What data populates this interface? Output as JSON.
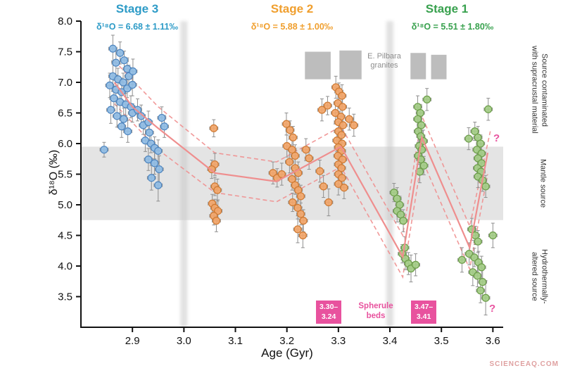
{
  "watermark": "SCIENCEAQ.COM",
  "chart_data": {
    "type": "scatter",
    "xlabel": "Age (Gyr)",
    "ylabel": "δ¹⁸O (‰)",
    "xlim": [
      2.8,
      3.62
    ],
    "ylim": [
      3.0,
      8.0
    ],
    "x_ticks": [
      2.9,
      3.0,
      3.1,
      3.2,
      3.3,
      3.4,
      3.5,
      3.6
    ],
    "y_ticks": [
      3.5,
      4.0,
      4.5,
      5.0,
      5.5,
      6.0,
      6.5,
      7.0,
      7.5,
      8.0
    ],
    "grid": false,
    "xerr": 0.008,
    "colors": {
      "pink": "#e8529e",
      "mantle_band": "#e4e4e4",
      "boundary_band": "#c9c9c9",
      "granite": "#bdbdbd",
      "error_bar": "#8f8f8f",
      "trend": "#ef8e8e"
    },
    "stages": [
      {
        "label": "Stage 3",
        "annotation": "δ¹⁸O = 6.68 ± 1.11‰",
        "color": "#2d9bc7"
      },
      {
        "label": "Stage 2",
        "annotation": "δ¹⁸O = 5.88 ± 1.00‰",
        "color": "#f09f2e"
      },
      {
        "label": "Stage 1",
        "annotation": "δ¹⁸O = 5.51 ± 1.80‰",
        "color": "#38a14e"
      }
    ],
    "stage_boundaries": [
      3.0,
      3.4
    ],
    "mantle_band": {
      "y0": 4.75,
      "y1": 5.95
    },
    "granite_rects": [
      {
        "x0": 3.235,
        "x1": 3.285,
        "y0": 7.05,
        "y1": 7.5
      },
      {
        "x0": 3.302,
        "x1": 3.345,
        "y0": 7.05,
        "y1": 7.52
      },
      {
        "x0": 3.44,
        "x1": 3.47,
        "y0": 7.05,
        "y1": 7.48
      },
      {
        "x0": 3.48,
        "x1": 3.51,
        "y0": 7.05,
        "y1": 7.45
      }
    ],
    "labels": {
      "granites_line1": "E. Pilbara",
      "granites_line2": "granites",
      "right_top_line1": "Source contaminated",
      "right_top_line2": "with supracrustal material",
      "right_middle": "Mantle source",
      "right_bottom_line1": "Hydrothermally-",
      "right_bottom_line2": "altered source",
      "spherule_line1": "Spherule",
      "spherule_line2": "beds",
      "box1_line1": "3.30–",
      "box1_line2": "3.24",
      "box2_line1": "3.47–",
      "box2_line2": "3.41",
      "question_mark": "?"
    },
    "trend": {
      "solid": [
        [
          2.865,
          7.0
        ],
        [
          2.9,
          6.6
        ],
        [
          2.95,
          6.25
        ],
        [
          3.06,
          5.52
        ],
        [
          3.18,
          5.38
        ],
        [
          3.305,
          5.95
        ],
        [
          3.425,
          4.15
        ],
        [
          3.462,
          6.1
        ],
        [
          3.555,
          4.3
        ],
        [
          3.59,
          5.85
        ]
      ],
      "upper": [
        [
          2.865,
          7.35
        ],
        [
          2.95,
          6.6
        ],
        [
          3.06,
          5.85
        ],
        [
          3.18,
          5.7
        ],
        [
          3.305,
          6.28
        ],
        [
          3.425,
          4.5
        ],
        [
          3.462,
          6.45
        ],
        [
          3.555,
          4.65
        ],
        [
          3.595,
          6.2
        ]
      ],
      "lower": [
        [
          2.865,
          6.65
        ],
        [
          2.95,
          5.9
        ],
        [
          3.06,
          5.2
        ],
        [
          3.18,
          5.05
        ],
        [
          3.305,
          5.62
        ],
        [
          3.425,
          3.82
        ],
        [
          3.462,
          5.75
        ],
        [
          3.555,
          3.95
        ],
        [
          3.59,
          5.5
        ]
      ]
    },
    "series": [
      {
        "name": "Stage 3",
        "color": "#8fbce4",
        "edge": "#4f86c0",
        "points": [
          [
            2.862,
            7.55,
            0.22
          ],
          [
            2.876,
            7.48,
            0.18
          ],
          [
            2.868,
            7.32,
            0.2
          ],
          [
            2.884,
            7.36,
            0.15
          ],
          [
            2.89,
            7.22,
            0.18
          ],
          [
            2.862,
            7.1,
            0.25
          ],
          [
            2.872,
            7.05,
            0.18
          ],
          [
            2.882,
            7.0,
            0.15
          ],
          [
            2.893,
            7.1,
            0.18
          ],
          [
            2.901,
            7.18,
            0.2
          ],
          [
            2.856,
            6.95,
            0.2
          ],
          [
            2.868,
            6.88,
            0.18
          ],
          [
            2.879,
            6.84,
            0.18
          ],
          [
            2.89,
            6.9,
            0.15
          ],
          [
            2.9,
            6.96,
            0.18
          ],
          [
            2.864,
            6.74,
            0.2
          ],
          [
            2.876,
            6.68,
            0.18
          ],
          [
            2.887,
            6.64,
            0.18
          ],
          [
            2.897,
            6.6,
            0.18
          ],
          [
            2.858,
            6.55,
            0.22
          ],
          [
            2.87,
            6.45,
            0.18
          ],
          [
            2.883,
            6.4,
            0.18
          ],
          [
            2.9,
            6.5,
            0.15
          ],
          [
            2.91,
            6.55,
            0.18
          ],
          [
            2.917,
            6.45,
            0.18
          ],
          [
            2.879,
            6.28,
            0.18
          ],
          [
            2.891,
            6.2,
            0.18
          ],
          [
            2.921,
            6.3,
            0.15
          ],
          [
            2.931,
            6.35,
            0.18
          ],
          [
            2.933,
            6.18,
            0.18
          ],
          [
            2.845,
            5.9,
            0.12
          ],
          [
            2.925,
            6.05,
            0.18
          ],
          [
            2.936,
            6.0,
            0.15
          ],
          [
            2.943,
            5.93,
            0.18
          ],
          [
            2.95,
            5.88,
            0.18
          ],
          [
            2.931,
            5.74,
            0.18
          ],
          [
            2.943,
            5.68,
            0.18
          ],
          [
            2.952,
            5.58,
            0.22
          ],
          [
            2.937,
            5.44,
            0.2
          ],
          [
            2.95,
            5.32,
            0.26
          ],
          [
            2.957,
            6.42,
            0.18
          ],
          [
            2.962,
            6.28,
            0.18
          ]
        ]
      },
      {
        "name": "Stage 2",
        "color": "#f2a569",
        "edge": "#cf7a33",
        "points": [
          [
            3.058,
            6.25,
            0.14
          ],
          [
            3.06,
            5.66,
            0.18
          ],
          [
            3.054,
            5.58,
            0.15
          ],
          [
            3.06,
            5.3,
            0.15
          ],
          [
            3.065,
            5.24,
            0.18
          ],
          [
            3.055,
            5.02,
            0.15
          ],
          [
            3.06,
            4.95,
            0.14
          ],
          [
            3.066,
            4.9,
            0.18
          ],
          [
            3.058,
            4.82,
            0.15
          ],
          [
            3.063,
            4.74,
            0.18
          ],
          [
            3.173,
            5.52,
            0.18
          ],
          [
            3.181,
            5.44,
            0.15
          ],
          [
            3.19,
            5.5,
            0.18
          ],
          [
            3.199,
            6.32,
            0.18
          ],
          [
            3.206,
            6.22,
            0.15
          ],
          [
            3.212,
            6.1,
            0.18
          ],
          [
            3.2,
            5.96,
            0.18
          ],
          [
            3.21,
            5.9,
            0.15
          ],
          [
            3.216,
            5.8,
            0.18
          ],
          [
            3.205,
            5.7,
            0.18
          ],
          [
            3.216,
            5.6,
            0.15
          ],
          [
            3.222,
            5.52,
            0.18
          ],
          [
            3.21,
            5.42,
            0.18
          ],
          [
            3.216,
            5.32,
            0.15
          ],
          [
            3.222,
            5.24,
            0.18
          ],
          [
            3.227,
            5.14,
            0.18
          ],
          [
            3.211,
            5.04,
            0.15
          ],
          [
            3.221,
            4.95,
            0.18
          ],
          [
            3.227,
            4.85,
            0.18
          ],
          [
            3.232,
            4.74,
            0.18
          ],
          [
            3.221,
            4.6,
            0.22
          ],
          [
            3.231,
            4.5,
            0.2
          ],
          [
            3.237,
            5.9,
            0.18
          ],
          [
            3.243,
            5.76,
            0.18
          ],
          [
            3.268,
            6.55,
            0.18
          ],
          [
            3.279,
            6.62,
            0.15
          ],
          [
            3.295,
            6.92,
            0.18
          ],
          [
            3.301,
            6.85,
            0.14
          ],
          [
            3.307,
            6.78,
            0.18
          ],
          [
            3.299,
            6.66,
            0.15
          ],
          [
            3.308,
            6.6,
            0.16
          ],
          [
            3.294,
            6.5,
            0.18
          ],
          [
            3.305,
            6.44,
            0.14
          ],
          [
            3.3,
            6.35,
            0.18
          ],
          [
            3.309,
            6.3,
            0.15
          ],
          [
            3.3,
            6.2,
            0.16
          ],
          [
            3.306,
            6.14,
            0.14
          ],
          [
            3.297,
            6.05,
            0.18
          ],
          [
            3.307,
            6.0,
            0.15
          ],
          [
            3.3,
            5.94,
            0.16
          ],
          [
            3.306,
            5.88,
            0.14
          ],
          [
            3.299,
            5.8,
            0.18
          ],
          [
            3.308,
            5.74,
            0.15
          ],
          [
            3.3,
            5.66,
            0.16
          ],
          [
            3.306,
            5.6,
            0.14
          ],
          [
            3.3,
            5.5,
            0.18
          ],
          [
            3.307,
            5.44,
            0.15
          ],
          [
            3.3,
            5.34,
            0.18
          ],
          [
            3.311,
            5.28,
            0.18
          ],
          [
            3.321,
            6.4,
            0.18
          ],
          [
            3.33,
            6.3,
            0.18
          ],
          [
            3.264,
            5.55,
            0.18
          ],
          [
            3.271,
            5.3,
            0.18
          ],
          [
            3.281,
            5.04,
            0.22
          ]
        ]
      },
      {
        "name": "Stage 1",
        "color": "#a3cc85",
        "edge": "#6d9e4a",
        "points": [
          [
            3.408,
            5.2,
            0.15
          ],
          [
            3.414,
            5.1,
            0.18
          ],
          [
            3.419,
            5.0,
            0.14
          ],
          [
            3.414,
            4.9,
            0.18
          ],
          [
            3.421,
            4.84,
            0.15
          ],
          [
            3.426,
            4.74,
            0.18
          ],
          [
            3.429,
            4.3,
            0.18
          ],
          [
            3.424,
            4.2,
            0.15
          ],
          [
            3.43,
            4.12,
            0.18
          ],
          [
            3.436,
            4.04,
            0.18
          ],
          [
            3.441,
            3.96,
            0.22
          ],
          [
            3.45,
            4.02,
            0.18
          ],
          [
            3.454,
            6.6,
            0.18
          ],
          [
            3.459,
            6.5,
            0.14
          ],
          [
            3.454,
            6.4,
            0.18
          ],
          [
            3.461,
            6.3,
            0.15
          ],
          [
            3.455,
            6.2,
            0.18
          ],
          [
            3.46,
            6.12,
            0.14
          ],
          [
            3.465,
            6.04,
            0.18
          ],
          [
            3.457,
            5.96,
            0.15
          ],
          [
            3.462,
            5.9,
            0.18
          ],
          [
            3.455,
            5.8,
            0.14
          ],
          [
            3.46,
            5.74,
            0.18
          ],
          [
            3.466,
            5.64,
            0.15
          ],
          [
            3.458,
            5.54,
            0.18
          ],
          [
            3.472,
            6.72,
            0.18
          ],
          [
            3.54,
            4.1,
            0.2
          ],
          [
            3.553,
            6.08,
            0.18
          ],
          [
            3.565,
            6.2,
            0.15
          ],
          [
            3.571,
            6.1,
            0.18
          ],
          [
            3.576,
            6.0,
            0.14
          ],
          [
            3.569,
            5.9,
            0.18
          ],
          [
            3.578,
            5.84,
            0.15
          ],
          [
            3.571,
            5.76,
            0.18
          ],
          [
            3.578,
            5.68,
            0.14
          ],
          [
            3.57,
            5.6,
            0.18
          ],
          [
            3.577,
            5.54,
            0.15
          ],
          [
            3.571,
            5.46,
            0.18
          ],
          [
            3.58,
            5.4,
            0.18
          ],
          [
            3.586,
            5.3,
            0.18
          ],
          [
            3.591,
            6.56,
            0.18
          ],
          [
            3.559,
            4.6,
            0.18
          ],
          [
            3.566,
            4.5,
            0.15
          ],
          [
            3.571,
            4.4,
            0.18
          ],
          [
            3.554,
            4.2,
            0.18
          ],
          [
            3.564,
            4.14,
            0.15
          ],
          [
            3.572,
            4.06,
            0.18
          ],
          [
            3.578,
            3.98,
            0.18
          ],
          [
            3.561,
            3.9,
            0.22
          ],
          [
            3.57,
            3.84,
            0.18
          ],
          [
            3.58,
            3.74,
            0.22
          ],
          [
            3.576,
            3.6,
            0.2
          ],
          [
            3.586,
            3.48,
            0.28
          ],
          [
            3.6,
            4.5,
            0.2
          ]
        ]
      }
    ]
  }
}
